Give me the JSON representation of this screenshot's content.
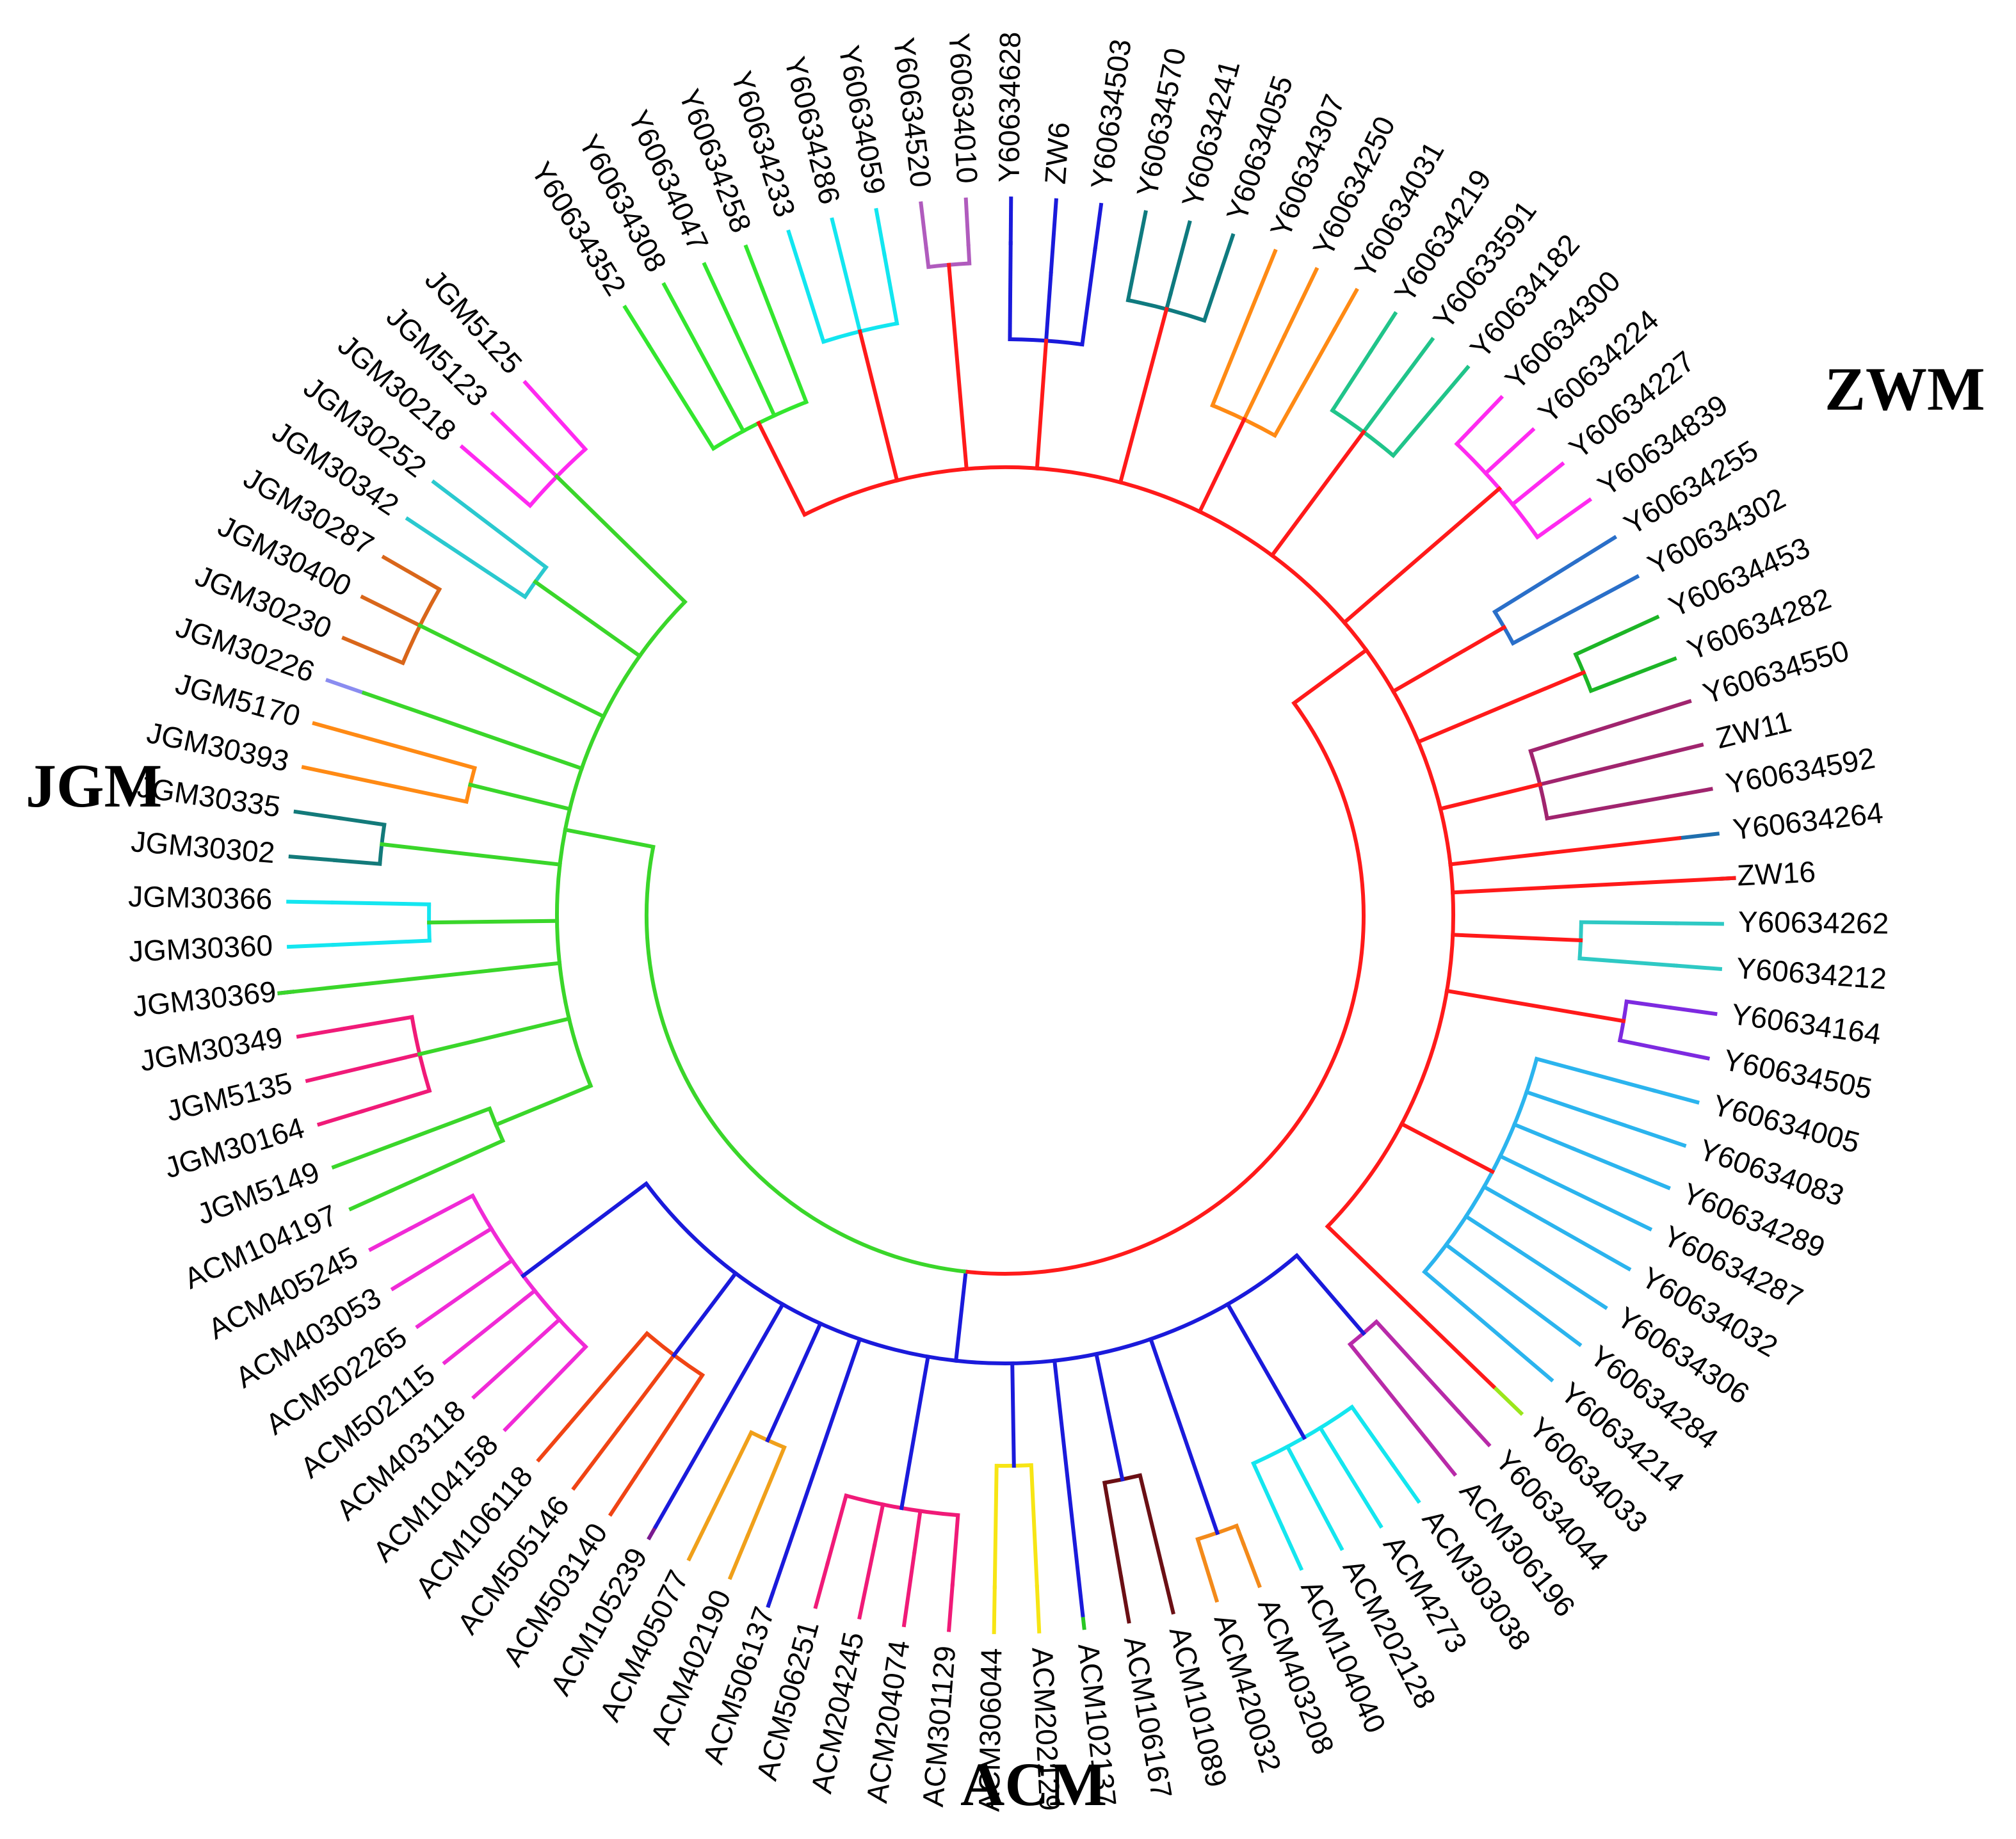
{
  "figure": {
    "groups": {
      "zwm": "ZWM",
      "jgm": "JGM",
      "acm": "ACM"
    },
    "clades": [
      {
        "name": "ZWM",
        "color": "#ff1a1a",
        "subclades": [
          {
            "color": "#33e62e",
            "leaves": [
              "Y60634352",
              "Y60634308",
              "Y60634047",
              "Y60634258"
            ]
          },
          {
            "color": "#12e6f0",
            "leaves": [
              "Y60634233",
              "Y60634286",
              "Y60634059"
            ]
          },
          {
            "color": "#b05bbd",
            "leaves": [
              "Y60634520",
              "Y60634010"
            ]
          },
          {
            "color": "#1a1adb",
            "leaves": [
              "Y60634628",
              "ZW6",
              "Y60634503"
            ]
          },
          {
            "color": "#0f7a7f",
            "leaves": [
              "Y60634570",
              "Y60634241",
              "Y60634055"
            ]
          },
          {
            "color": "#ff8a14",
            "leaves": [
              "Y60634307",
              "Y60634250",
              "Y60634031"
            ]
          },
          {
            "color": "#20c48a",
            "leaves": [
              "Y60634219",
              "Y60633591",
              "Y60634182"
            ]
          },
          {
            "color": "#ff2af0",
            "leaves": [
              "Y60634300",
              "Y60634224",
              "Y60634227",
              "Y60634839"
            ]
          },
          {
            "color": "#2a6fc9",
            "leaves": [
              "Y60634255",
              "Y60634302"
            ]
          },
          {
            "color": "#1cb526",
            "leaves": [
              "Y60634453",
              "Y60634282"
            ]
          },
          {
            "color": "#a0246e",
            "leaves": [
              "Y60634550",
              "ZW11",
              "Y60634592"
            ]
          },
          {
            "color": "#1f6fae",
            "leaves": [
              "Y60634264"
            ]
          },
          {
            "color": "#0b4d4a",
            "leaves": [
              "ZW16"
            ]
          },
          {
            "color": "#2ec9c4",
            "leaves": [
              "Y60634262",
              "Y60634212"
            ]
          },
          {
            "color": "#7d2ae0",
            "leaves": [
              "Y60634164",
              "Y60634505"
            ]
          },
          {
            "color": "#2bb4ee",
            "leaves": [
              "Y60634005",
              "Y60634083",
              "Y60634289",
              "Y60634287",
              "Y60634032",
              "Y60634306",
              "Y60634284",
              "Y60634214"
            ]
          },
          {
            "color": "#9be61c",
            "leaves": [
              "Y60634033"
            ]
          }
        ]
      },
      {
        "name": "ACM",
        "color": "#1a1adb",
        "subclades": [
          {
            "color": "#b82aa8",
            "leaves": [
              "Y60634044",
              "ACM306196"
            ]
          },
          {
            "color": "#14e6ef",
            "leaves": [
              "ACM303038",
              "ACM4273",
              "ACM202128",
              "ACM104040"
            ]
          },
          {
            "color": "#f38a1a",
            "leaves": [
              "ACM403208",
              "ACM420032"
            ]
          },
          {
            "color": "#6b0f14",
            "leaves": [
              "ACM101089",
              "ACM106167"
            ]
          },
          {
            "color": "#28c724",
            "leaves": [
              "ACM102137"
            ]
          },
          {
            "color": "#f7e514",
            "leaves": [
              "ACM202129",
              "ACM306044"
            ]
          },
          {
            "color": "#f01a78",
            "leaves": [
              "ACM301129",
              "ACM204074",
              "ACM204245",
              "ACM506251"
            ]
          },
          {
            "color": "#137a6f",
            "leaves": [
              "ACM506137"
            ]
          },
          {
            "color": "#f0a01a",
            "leaves": [
              "ACM402190",
              "ACM405077"
            ]
          },
          {
            "color": "#7a1a8f",
            "leaves": [
              "ACM105239"
            ]
          },
          {
            "color": "#f04414",
            "leaves": [
              "ACM503140",
              "ACM505146",
              "ACM106118"
            ]
          },
          {
            "color": "#f02ad6",
            "leaves": [
              "ACM104158",
              "ACM403118",
              "ACM502115",
              "ACM502265",
              "ACM403053",
              "ACM405245"
            ]
          }
        ]
      },
      {
        "name": "JGM",
        "color": "#3ad62a",
        "subclades": [
          {
            "color": "#3ad62a",
            "leaves": [
              "ACM104197",
              "JGM5149"
            ]
          },
          {
            "color": "#f01a78",
            "leaves": [
              "JGM30164",
              "JGM5135",
              "JGM30349"
            ]
          },
          {
            "color": "#0f1a6e",
            "leaves": [
              "JGM30369"
            ]
          },
          {
            "color": "#14e6f0",
            "leaves": [
              "JGM30360",
              "JGM30366"
            ]
          },
          {
            "color": "#137a7a",
            "leaves": [
              "JGM30302",
              "JGM30335"
            ]
          },
          {
            "color": "#ff8a14",
            "leaves": [
              "JGM30393",
              "JGM5170"
            ]
          },
          {
            "color": "#8a8cf0",
            "leaves": [
              "JGM30226"
            ]
          },
          {
            "color": "#d9661a",
            "leaves": [
              "JGM30230",
              "JGM30400",
              "JGM30287"
            ]
          },
          {
            "color": "#2ac9cf",
            "leaves": [
              "JGM30342",
              "JGM30252"
            ]
          },
          {
            "color": "#ff2af0",
            "leaves": [
              "JGM30218",
              "JGM5123",
              "JGM5125"
            ]
          }
        ]
      }
    ]
  }
}
